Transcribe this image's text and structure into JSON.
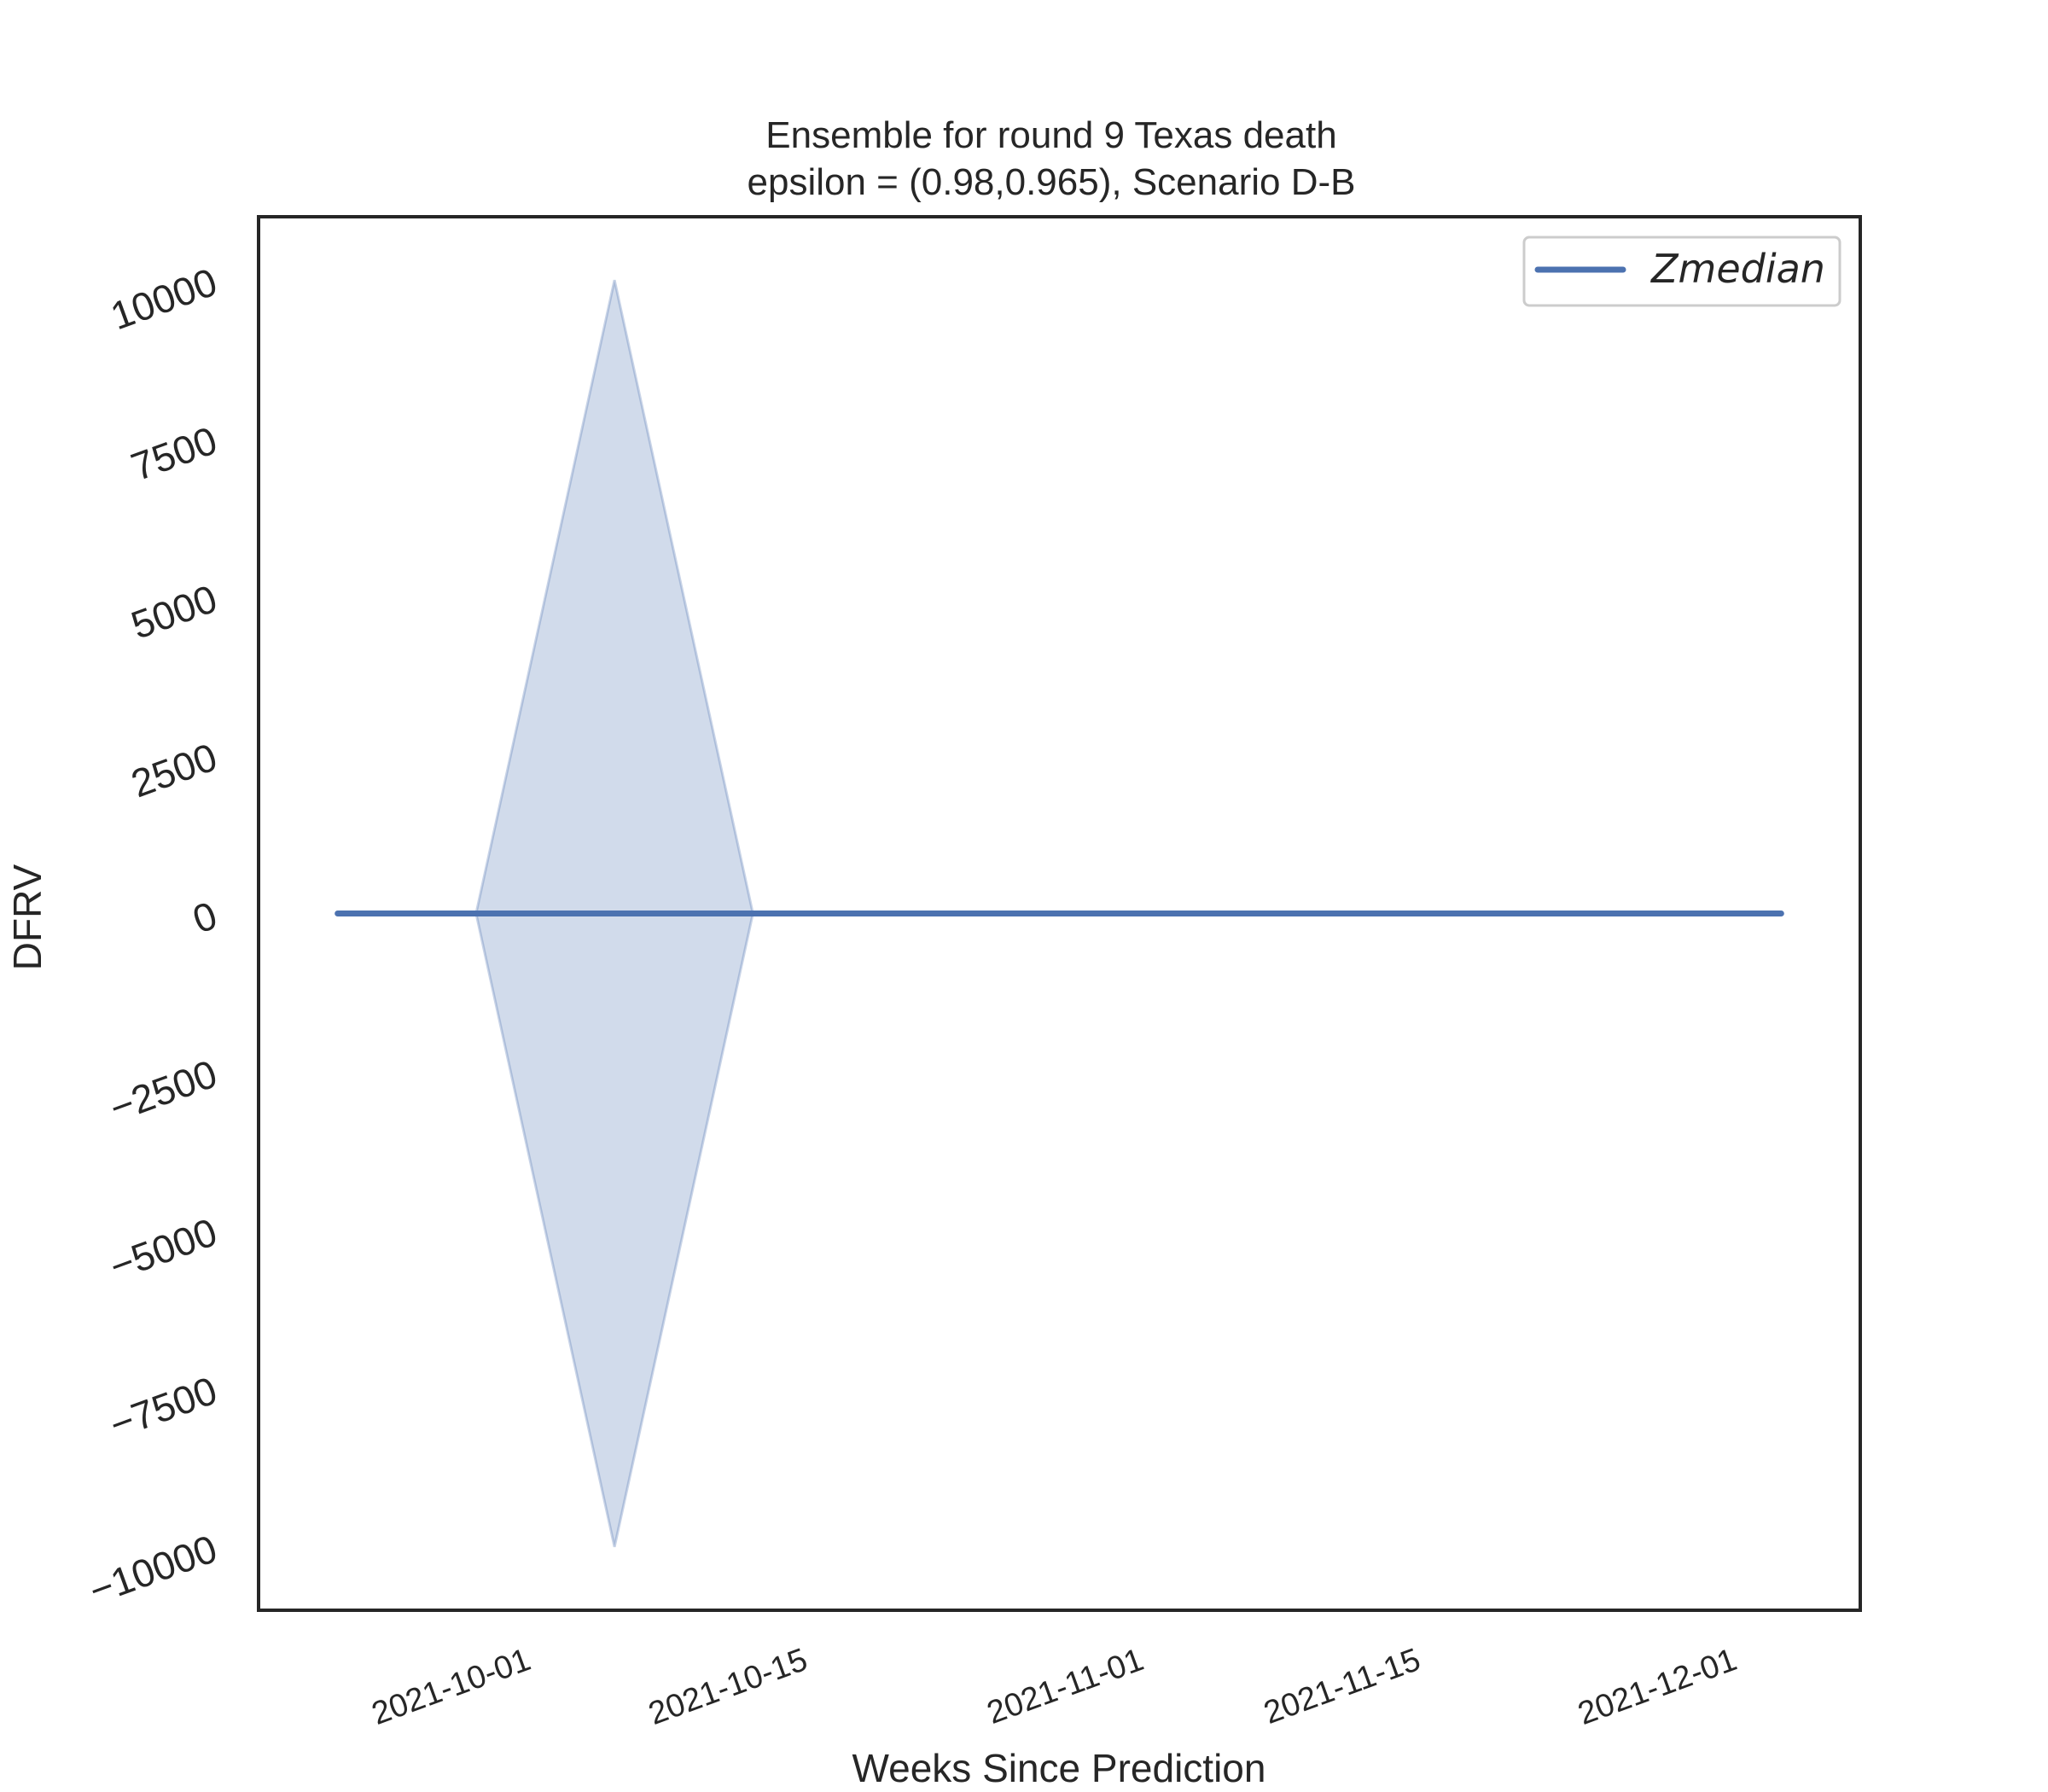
{
  "chart_data": {
    "type": "line",
    "title": "Ensemble for round 9 Texas  death",
    "subtitle": "epsilon = (0.98,0.965), Scenario D-B",
    "xlabel": "Weeks Since Prediction",
    "ylabel": "DFRV",
    "x_type": "date",
    "xlim": [
      "2021-09-18",
      "2021-12-08"
    ],
    "ylim": [
      -11000,
      11000
    ],
    "x_ticks": [
      "2021-10-01",
      "2021-10-15",
      "2021-11-01",
      "2021-11-15",
      "2021-12-01"
    ],
    "y_ticks": [
      -10000,
      -7500,
      -5000,
      -2500,
      0,
      2500,
      5000,
      7500,
      10000
    ],
    "y_tick_labels": [
      "−10000",
      "−7500",
      "−5000",
      "−2500",
      "0",
      "2500",
      "5000",
      "7500",
      "10000"
    ],
    "grid": false,
    "legend_position": "top-right",
    "x": [
      "2021-09-22",
      "2021-09-29",
      "2021-10-06",
      "2021-10-13",
      "2021-10-20",
      "2021-10-27",
      "2021-11-03",
      "2021-11-10",
      "2021-11-17",
      "2021-11-24",
      "2021-12-01",
      "2021-12-04"
    ],
    "series": [
      {
        "name": "Zmedian",
        "color": "#4c72b0",
        "values": [
          0,
          0,
          0,
          0,
          0,
          0,
          0,
          0,
          0,
          0,
          0,
          0
        ]
      }
    ],
    "band": {
      "color": "#4c72b0",
      "x": [
        "2021-09-29",
        "2021-10-06",
        "2021-10-13"
      ],
      "lower": [
        0,
        -10000,
        0
      ],
      "upper": [
        0,
        10000,
        0
      ]
    }
  }
}
